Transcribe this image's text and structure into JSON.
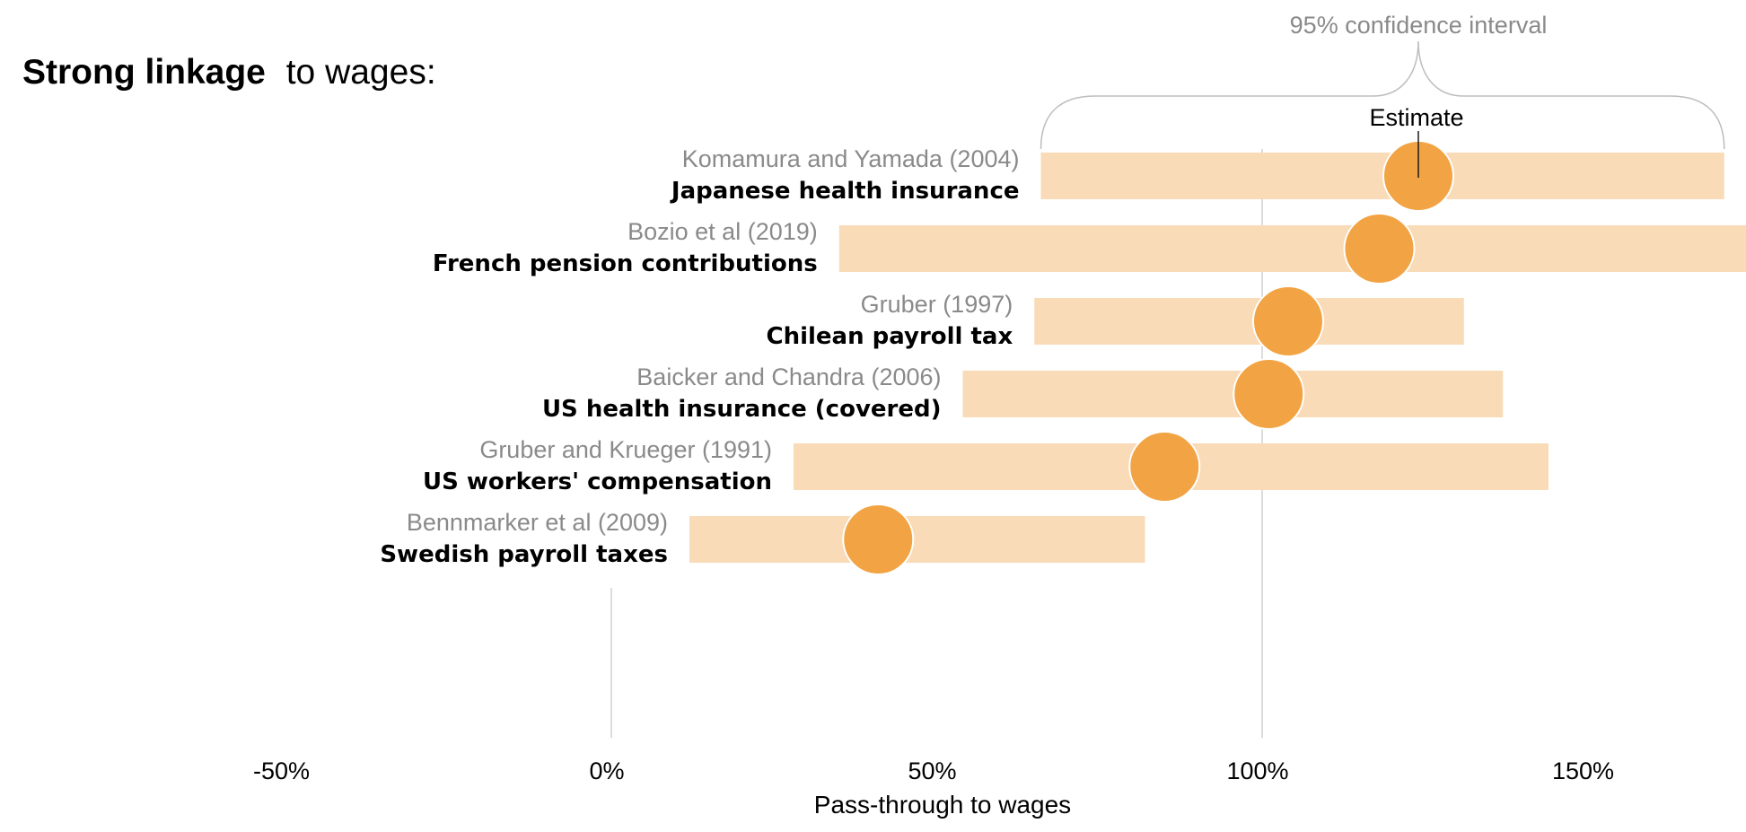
{
  "colors": {
    "accent": "#f2a444",
    "ci_band": "#f9dbb7",
    "study_text": "#8a8a8a",
    "gridline": "#d0d0d0"
  },
  "title": {
    "accent": "Strong linkage",
    "rest": "to wages:"
  },
  "chart_data": {
    "type": "dot-and-interval",
    "xlabel": "Pass-through to wages",
    "xlim": [
      -0.5,
      1.75
    ],
    "ticks": [
      {
        "value": -0.5,
        "label": "-50%"
      },
      {
        "value": 0,
        "label": "0%"
      },
      {
        "value": 0.5,
        "label": "50%"
      },
      {
        "value": 1.0,
        "label": "100%"
      },
      {
        "value": 1.5,
        "label": "150%"
      }
    ],
    "reference_lines": [
      0,
      1.0
    ],
    "rows": [
      {
        "study": "Komamura and Yamada (2004)",
        "program": "Japanese health insurance",
        "estimate": 1.24,
        "ci": [
          0.66,
          1.71
        ]
      },
      {
        "study": "Bozio et al (2019)",
        "program": "French pension contributions",
        "estimate": 1.18,
        "ci": [
          0.35,
          1.75
        ]
      },
      {
        "study": "Gruber (1997)",
        "program": "Chilean payroll tax",
        "estimate": 1.04,
        "ci": [
          0.65,
          1.31
        ]
      },
      {
        "study": "Baicker and Chandra (2006)",
        "program": "US health insurance (covered)",
        "estimate": 1.01,
        "ci": [
          0.54,
          1.37
        ]
      },
      {
        "study": "Gruber and Krueger (1991)",
        "program": "US workers' compensation",
        "estimate": 0.85,
        "ci": [
          0.28,
          1.44
        ]
      },
      {
        "study": "Bennmarker et al (2009)",
        "program": "Swedish payroll taxes",
        "estimate": 0.41,
        "ci": [
          0.12,
          0.82
        ]
      }
    ],
    "annotations": {
      "ci_label": "95% confidence interval",
      "estimate_label": "Estimate"
    }
  }
}
